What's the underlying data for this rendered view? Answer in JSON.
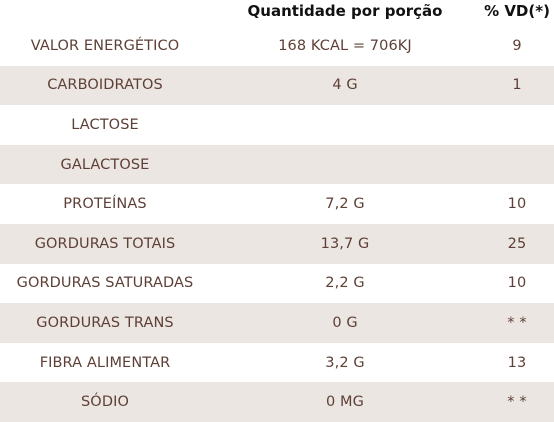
{
  "header": {
    "quantity_label": "Quantidade por porção",
    "vd_label": "% VD(*)"
  },
  "rows": [
    {
      "name": "VALOR ENERGÉTICO",
      "quantity": "168 KCAL = 706KJ",
      "vd": "9"
    },
    {
      "name": "CARBOIDRATOS",
      "quantity": "4 G",
      "vd": "1"
    },
    {
      "name": "LACTOSE",
      "quantity": "",
      "vd": ""
    },
    {
      "name": "GALACTOSE",
      "quantity": "",
      "vd": ""
    },
    {
      "name": "PROTEÍNAS",
      "quantity": "7,2 G",
      "vd": "10"
    },
    {
      "name": "GORDURAS TOTAIS",
      "quantity": "13,7 G",
      "vd": "25"
    },
    {
      "name": "GORDURAS SATURADAS",
      "quantity": "2,2 G",
      "vd": "10"
    },
    {
      "name": "GORDURAS TRANS",
      "quantity": "0 G",
      "vd": "* *"
    },
    {
      "name": "FIBRA ALIMENTAR",
      "quantity": "3,2 G",
      "vd": "13"
    },
    {
      "name": "SÓDIO",
      "quantity": "0 MG",
      "vd": "* *"
    }
  ],
  "colors": {
    "shade": "#ece6e2",
    "text": "#5e4037",
    "header_text": "#111111"
  }
}
